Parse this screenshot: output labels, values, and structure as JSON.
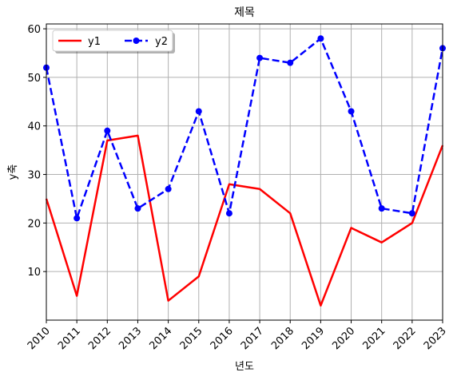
{
  "chart_data": {
    "type": "line",
    "title": "제목",
    "xlabel": "년도",
    "ylabel": "y축",
    "x": [
      2010,
      2011,
      2012,
      2013,
      2014,
      2015,
      2016,
      2017,
      2018,
      2019,
      2020,
      2021,
      2022,
      2023
    ],
    "xlim": [
      2010,
      2023
    ],
    "ylim": [
      0,
      61
    ],
    "yticks": [
      10,
      20,
      30,
      40,
      50,
      60
    ],
    "grid": true,
    "legend_position": "top-left",
    "series": [
      {
        "name": "y1",
        "color": "#ff0000",
        "style": "solid",
        "marker": "none",
        "values": [
          25,
          5,
          37,
          38,
          4,
          9,
          28,
          27,
          22,
          3,
          19,
          16,
          20,
          36
        ]
      },
      {
        "name": "y2",
        "color": "#0000ff",
        "style": "dashed",
        "marker": "circle",
        "values": [
          52,
          21,
          39,
          23,
          27,
          43,
          22,
          54,
          53,
          58,
          43,
          23,
          22,
          56
        ]
      }
    ]
  }
}
